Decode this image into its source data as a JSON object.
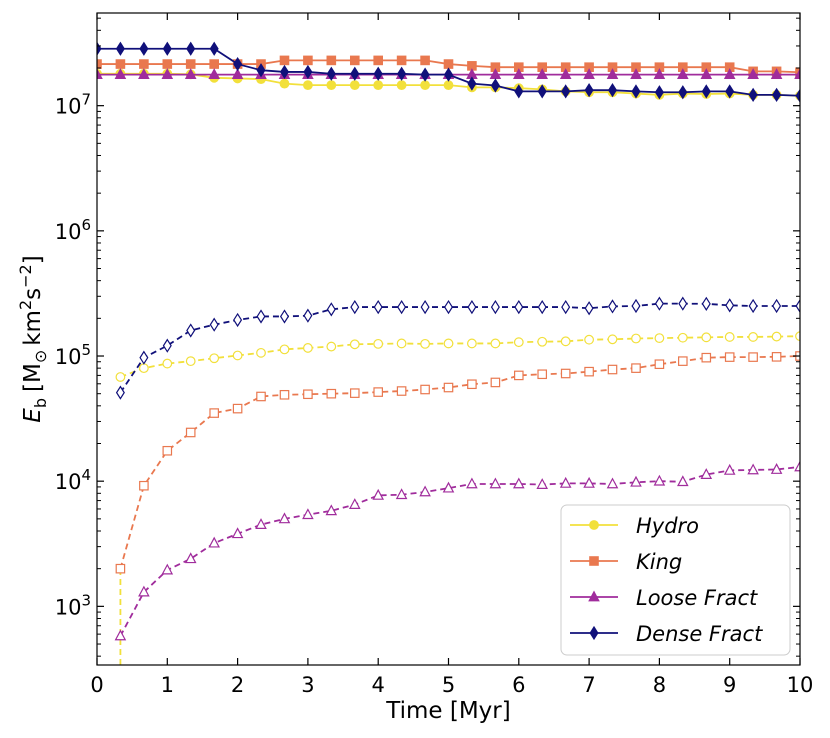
{
  "chart_data": {
    "type": "line",
    "xlabel": "Time [Myr]",
    "ylabel": "E_b [M_sun km^2 s^-2]",
    "ylabel_parts": {
      "e": "E",
      "b": "b",
      "open": "[M",
      "sun": "⊙",
      "km": "km",
      "two": "2",
      "s": "s",
      "minus2": "−2",
      "close": "]"
    },
    "xlim": [
      0,
      10
    ],
    "ylim": [
      340,
      55000000
    ],
    "yscale": "log",
    "x_ticks": [
      0,
      1,
      2,
      3,
      4,
      5,
      6,
      7,
      8,
      9,
      10
    ],
    "x_tick_labels": [
      "0",
      "1",
      "2",
      "3",
      "4",
      "5",
      "6",
      "7",
      "8",
      "9",
      "10"
    ],
    "y_ticks": [
      1000,
      10000,
      100000,
      1000000,
      10000000
    ],
    "y_tick_base": "10",
    "y_tick_exponents": [
      "3",
      "4",
      "5",
      "6",
      "7"
    ],
    "legend": {
      "position": "bottom-right",
      "entries": [
        "Hydro",
        "King",
        "Loose Fract",
        "Dense Fract"
      ]
    },
    "series": [
      {
        "name": "Hydro",
        "color": "#f2e03b",
        "marker": "circle",
        "style": "solid",
        "filled": true,
        "x": [
          0,
          0.333,
          0.667,
          1,
          1.333,
          1.667,
          2,
          2.333,
          2.667,
          3,
          3.333,
          3.667,
          4,
          4.333,
          4.667,
          5,
          5.333,
          5.667,
          6,
          6.333,
          6.667,
          7,
          7.333,
          7.667,
          8,
          8.333,
          8.667,
          9,
          9.333,
          9.667,
          10
        ],
        "y": [
          18000000,
          18000000,
          18000000,
          18000000,
          17800000,
          16700000,
          16500000,
          16300000,
          15000000,
          14600000,
          14600000,
          14600000,
          14600000,
          14600000,
          14600000,
          14600000,
          14000000,
          14000000,
          13800000,
          13500000,
          13000000,
          12800000,
          12800000,
          12500000,
          12200000,
          12500000,
          12400000,
          12500000,
          12200000,
          12200000,
          12000000
        ]
      },
      {
        "name": "King",
        "color": "#e9784f",
        "marker": "square",
        "style": "solid",
        "filled": true,
        "x": [
          0,
          0.333,
          0.667,
          1,
          1.333,
          1.667,
          2,
          2.333,
          2.667,
          3,
          3.333,
          3.667,
          4,
          4.333,
          4.667,
          5,
          5.333,
          5.667,
          6,
          6.333,
          6.667,
          7,
          7.333,
          7.667,
          8,
          8.333,
          8.667,
          9,
          9.333,
          9.667,
          10
        ],
        "y": [
          21500000,
          21500000,
          21500000,
          21500000,
          21500000,
          21500000,
          21500000,
          21500000,
          23000000,
          23000000,
          23000000,
          23000000,
          23000000,
          23000000,
          23000000,
          21500000,
          20800000,
          20300000,
          20300000,
          20300000,
          20300000,
          20300000,
          20300000,
          20300000,
          20300000,
          20300000,
          20300000,
          20300000,
          18800000,
          18800000,
          18500000
        ]
      },
      {
        "name": "Loose Fract",
        "color": "#a02c9c",
        "marker": "triangle",
        "style": "solid",
        "filled": true,
        "x": [
          0,
          0.333,
          0.667,
          1,
          1.333,
          1.667,
          2,
          2.333,
          2.667,
          3,
          3.333,
          3.667,
          4,
          4.333,
          4.667,
          5,
          5.333,
          5.667,
          6,
          6.333,
          6.667,
          7,
          7.333,
          7.667,
          8,
          8.333,
          8.667,
          9,
          9.333,
          9.667,
          10
        ],
        "y": [
          17700000,
          17700000,
          17700000,
          17700000,
          17700000,
          17700000,
          17700000,
          17700000,
          17700000,
          17700000,
          17700000,
          17700000,
          17700000,
          17700000,
          17700000,
          17700000,
          17700000,
          17700000,
          17700000,
          17700000,
          17700000,
          17700000,
          17700000,
          17700000,
          17700000,
          17700000,
          17700000,
          17700000,
          17700000,
          17700000,
          17700000
        ]
      },
      {
        "name": "Dense Fract",
        "color": "#10107a",
        "marker": "diamond",
        "style": "solid",
        "filled": true,
        "x": [
          0,
          0.333,
          0.667,
          1,
          1.333,
          1.667,
          2,
          2.333,
          2.667,
          3,
          3.333,
          3.667,
          4,
          4.333,
          4.667,
          5,
          5.333,
          5.667,
          6,
          6.333,
          6.667,
          7,
          7.333,
          7.667,
          8,
          8.333,
          8.667,
          9,
          9.333,
          9.667,
          10
        ],
        "y": [
          28500000,
          28500000,
          28500000,
          28500000,
          28500000,
          28500000,
          21500000,
          19200000,
          18600000,
          18600000,
          18000000,
          18000000,
          18000000,
          18000000,
          17700000,
          17700000,
          15000000,
          14500000,
          13000000,
          13000000,
          13000000,
          13300000,
          13300000,
          13000000,
          12800000,
          12800000,
          13000000,
          13000000,
          12200000,
          12200000,
          12000000
        ]
      },
      {
        "name": "",
        "color": "#f2e03b",
        "marker": "circle",
        "style": "dashed",
        "filled": false,
        "x": [
          0.333,
          0.667,
          1,
          1.333,
          1.667,
          2,
          2.333,
          2.667,
          3,
          3.333,
          3.667,
          4,
          4.333,
          4.667,
          5,
          5.333,
          5.667,
          6,
          6.333,
          6.667,
          7,
          7.333,
          7.667,
          8,
          8.333,
          8.667,
          9,
          9.333,
          9.667,
          10
        ],
        "y": [
          68000,
          80000,
          87000,
          91000,
          96000,
          101000,
          106000,
          113000,
          116000,
          119000,
          124000,
          125000,
          126000,
          125000,
          126000,
          126000,
          126000,
          129000,
          130000,
          131000,
          135000,
          136000,
          138000,
          139000,
          140000,
          141000,
          142000,
          142000,
          143000,
          144000
        ]
      },
      {
        "name": "",
        "color": "#e9784f",
        "marker": "square",
        "style": "dashed",
        "filled": false,
        "x": [
          0.333,
          0.667,
          1,
          1.333,
          1.667,
          2,
          2.333,
          2.667,
          3,
          3.333,
          3.667,
          4,
          4.333,
          4.667,
          5,
          5.333,
          5.667,
          6,
          6.333,
          6.667,
          7,
          7.333,
          7.667,
          8,
          8.333,
          8.667,
          9,
          9.333,
          9.667,
          10
        ],
        "y": [
          2000,
          9200,
          17500,
          24500,
          35000,
          38000,
          47500,
          49000,
          49500,
          50000,
          50500,
          51500,
          52500,
          54000,
          56000,
          59500,
          61500,
          70000,
          71500,
          72500,
          75000,
          78000,
          80000,
          86000,
          91000,
          97000,
          98000,
          98000,
          98500,
          100000
        ]
      },
      {
        "name": "",
        "color": "#a02c9c",
        "marker": "triangle",
        "style": "dashed",
        "filled": false,
        "x": [
          0.333,
          0.667,
          1,
          1.333,
          1.667,
          2,
          2.333,
          2.667,
          3,
          3.333,
          3.667,
          4,
          4.333,
          4.667,
          5,
          5.333,
          5.667,
          6,
          6.333,
          6.667,
          7,
          7.333,
          7.667,
          8,
          8.333,
          8.667,
          9,
          9.333,
          9.667,
          10
        ],
        "y": [
          580,
          1300,
          1950,
          2400,
          3200,
          3800,
          4500,
          5000,
          5400,
          5800,
          6500,
          7700,
          7800,
          8200,
          8800,
          9500,
          9500,
          9500,
          9400,
          9600,
          9600,
          9500,
          9800,
          10000,
          9900,
          11300,
          12200,
          12300,
          12400,
          13000
        ]
      },
      {
        "name": "",
        "color": "#10107a",
        "marker": "diamond",
        "style": "dashed",
        "filled": false,
        "x": [
          0.333,
          0.667,
          1,
          1.333,
          1.667,
          2,
          2.333,
          2.667,
          3,
          3.333,
          3.667,
          4,
          4.333,
          4.667,
          5,
          5.333,
          5.667,
          6,
          6.333,
          6.667,
          7,
          7.333,
          7.667,
          8,
          8.333,
          8.667,
          9,
          9.333,
          9.667,
          10
        ],
        "y": [
          51000,
          97000,
          121000,
          160000,
          178000,
          194000,
          207000,
          207000,
          210000,
          236000,
          246000,
          246000,
          246000,
          246000,
          246000,
          246000,
          246000,
          246000,
          246000,
          246000,
          241000,
          249000,
          251000,
          262000,
          262000,
          261000,
          254000,
          251000,
          251000,
          251000
        ]
      }
    ],
    "vertical_line": {
      "x": 0.333,
      "color": "#f2e03b",
      "style": "dashed"
    }
  }
}
